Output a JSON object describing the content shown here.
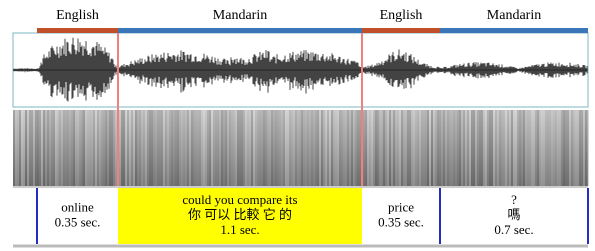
{
  "segments": [
    {
      "language": "English",
      "text": [
        "online"
      ],
      "duration": "0.35 sec."
    },
    {
      "language": "Mandarin",
      "text": [
        "could you compare its",
        "你 可以 比較 它 的"
      ],
      "duration": "1.1 sec."
    },
    {
      "language": "English",
      "text": [
        "price"
      ],
      "duration": "0.35 sec."
    },
    {
      "language": "Mandarin",
      "text": [
        "?",
        "嗎"
      ],
      "duration": "0.7 sec."
    }
  ]
}
